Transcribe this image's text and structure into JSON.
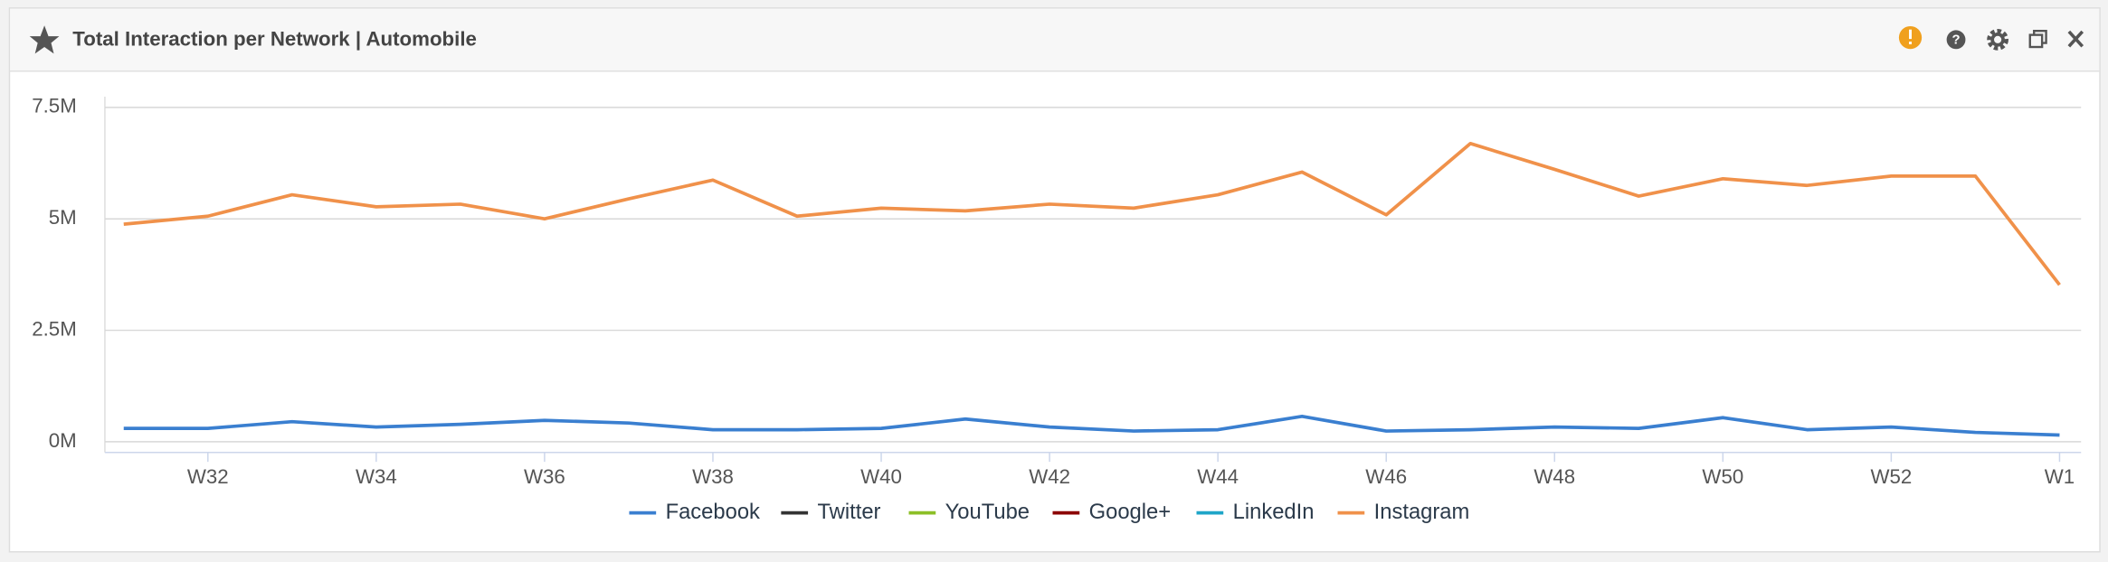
{
  "chart_data": {
    "type": "line",
    "title": "Total Interaction per Network | Automobile",
    "categories": [
      null,
      "W32",
      null,
      "W34",
      null,
      "W36",
      null,
      "W38",
      null,
      "W40",
      null,
      "W42",
      null,
      "W44",
      null,
      "W46",
      null,
      "W48",
      null,
      "W50",
      null,
      "W52",
      null,
      "W1"
    ],
    "series": [
      {
        "name": "Facebook",
        "color": "#3a7fd0",
        "values": [
          300000,
          300000,
          450000,
          330000,
          390000,
          480000,
          420000,
          270000,
          270000,
          300000,
          510000,
          330000,
          240000,
          270000,
          570000,
          240000,
          270000,
          330000,
          300000,
          540000,
          270000,
          330000,
          210000,
          150000
        ]
      },
      {
        "name": "Twitter",
        "color": "#333333",
        "values": [
          null,
          null,
          null,
          null,
          null,
          null,
          null,
          null,
          null,
          null,
          null,
          null,
          null,
          null,
          null,
          null,
          null,
          null,
          null,
          null,
          null,
          null,
          null,
          null
        ]
      },
      {
        "name": "YouTube",
        "color": "#8cbf26",
        "values": [
          null,
          null,
          null,
          null,
          null,
          null,
          null,
          null,
          null,
          null,
          null,
          null,
          null,
          null,
          null,
          null,
          null,
          null,
          null,
          null,
          null,
          null,
          null,
          null
        ]
      },
      {
        "name": "Google+",
        "color": "#8b0000",
        "values": [
          null,
          null,
          null,
          null,
          null,
          null,
          null,
          null,
          null,
          null,
          null,
          null,
          null,
          null,
          null,
          null,
          null,
          null,
          null,
          null,
          null,
          null,
          null,
          null
        ]
      },
      {
        "name": "LinkedIn",
        "color": "#1ea5c8",
        "values": [
          null,
          null,
          null,
          null,
          null,
          null,
          null,
          null,
          null,
          null,
          null,
          null,
          null,
          null,
          null,
          null,
          null,
          null,
          null,
          null,
          null,
          null,
          null,
          null
        ]
      },
      {
        "name": "Instagram",
        "color": "#f0914a",
        "values": [
          4880000,
          5060000,
          5540000,
          5270000,
          5330000,
          5000000,
          5450000,
          5870000,
          5060000,
          5240000,
          5180000,
          5330000,
          5240000,
          5540000,
          6050000,
          5090000,
          6690000,
          6110000,
          5510000,
          5900000,
          5750000,
          5960000,
          5960000,
          3520000
        ]
      }
    ],
    "ylim": [
      -240000,
      7500000
    ],
    "yticks": [
      {
        "value": 0,
        "label": "0M"
      },
      {
        "value": 2500000,
        "label": "2.5M"
      },
      {
        "value": 5000000,
        "label": "5M"
      },
      {
        "value": 7500000,
        "label": "7.5M"
      }
    ],
    "grid": true
  }
}
